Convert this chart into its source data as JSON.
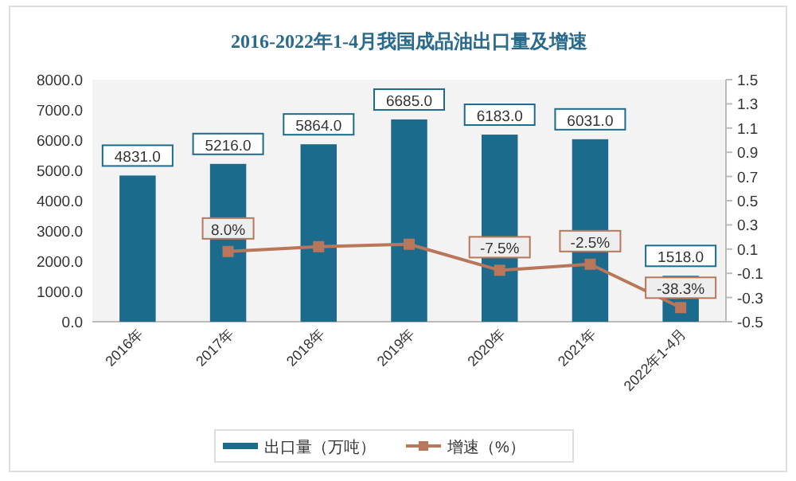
{
  "chart_data": {
    "type": "bar",
    "title": "2016-2022年1-4月我国成品油出口量及增速",
    "categories": [
      "2016年",
      "2017年",
      "2018年",
      "2019年",
      "2020年",
      "2021年",
      "2022年1-4月"
    ],
    "series": [
      {
        "name": "出口量（万吨）",
        "color": "#1d6b8c",
        "values": [
          4831.0,
          5216.0,
          5864.0,
          6685.0,
          6183.0,
          6031.0,
          1518.0
        ],
        "value_labels": [
          "4831.0",
          "5216.0",
          "5864.0",
          "6685.0",
          "6183.0",
          "6031.0",
          "1518.0"
        ]
      },
      {
        "name": "增速（%）",
        "type": "line",
        "axis": "y2",
        "color": "#b8765a",
        "marker": "square",
        "values": [
          null,
          0.08,
          0.12,
          0.14,
          -0.075,
          -0.025,
          -0.383
        ],
        "value_labels": [
          null,
          "8.0%",
          null,
          null,
          "-7.5%",
          "-2.5%",
          "-38.3%"
        ]
      }
    ],
    "ylim": [
      0,
      8000
    ],
    "yticks": [
      {
        "value": 0,
        "label": "0.0"
      },
      {
        "value": 1000,
        "label": "1000.0"
      },
      {
        "value": 2000,
        "label": "2000.0"
      },
      {
        "value": 3000,
        "label": "3000.0"
      },
      {
        "value": 4000,
        "label": "4000.0"
      },
      {
        "value": 5000,
        "label": "5000.0"
      },
      {
        "value": 6000,
        "label": "6000.0"
      },
      {
        "value": 7000,
        "label": "7000.0"
      },
      {
        "value": 8000,
        "label": "8000.0"
      }
    ],
    "y2lim": [
      -0.5,
      1.5
    ],
    "y2ticks": [
      -0.5,
      -0.3,
      -0.1,
      0.1,
      0.3,
      0.5,
      0.7,
      0.9,
      1.1,
      1.3,
      1.5
    ],
    "legend": "bottom",
    "grid": false
  }
}
